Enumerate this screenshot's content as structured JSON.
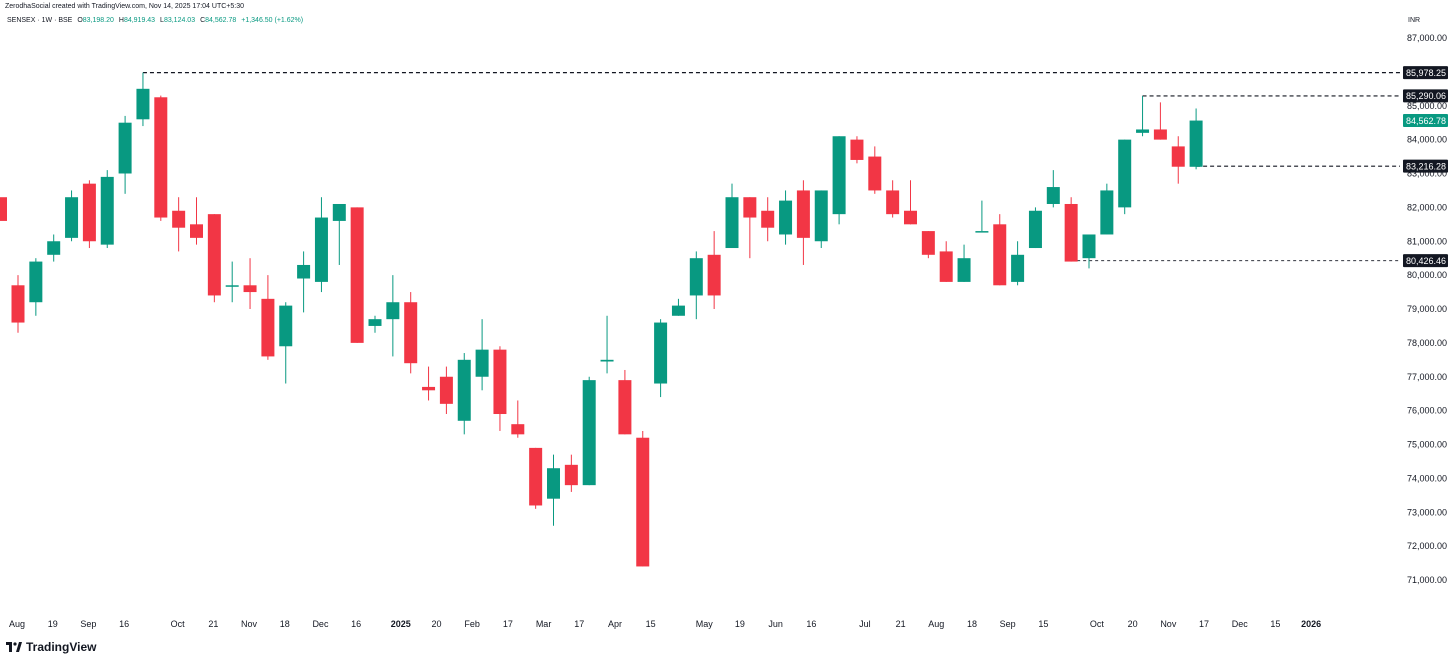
{
  "header": {
    "credit": "ZerodhaSocial created with TradingView.com, Nov 14, 2025 17:04 UTC+5:30",
    "symbol": "SENSEX · 1W · BSE",
    "open_label": "O",
    "open": "83,198.20",
    "high_label": "H",
    "high": "84,919.43",
    "low_label": "L",
    "low": "83,124.03",
    "close_label": "C",
    "close": "84,562.78",
    "change": "+1,346.50 (+1.62%)",
    "currency": "INR"
  },
  "colors": {
    "up": "#089981",
    "down": "#f23645",
    "ref_line": "#131722",
    "text": "#131722"
  },
  "footer": {
    "brand": "TradingView",
    "logo_icon": "tradingview-logo-icon"
  },
  "chart_data": {
    "type": "candlestick",
    "interval": "1W",
    "y_scale": "linear",
    "ylim": [
      70500,
      87500
    ],
    "y_ticks": [
      71000,
      72000,
      73000,
      74000,
      75000,
      76000,
      77000,
      78000,
      79000,
      80000,
      81000,
      82000,
      83000,
      84000,
      85000,
      86000,
      87000
    ],
    "y_tick_labels": [
      "71,000.00",
      "72,000.00",
      "73,000.00",
      "74,000.00",
      "75,000.00",
      "76,000.00",
      "77,000.00",
      "78,000.00",
      "79,000.00",
      "80,000.00",
      "81,000.00",
      "82,000.00",
      "83,000.00",
      "84,000.00",
      "85,000.00",
      "86,000.00",
      "87,000.00"
    ],
    "x_ticks": [
      {
        "i": 0,
        "label": "Aug"
      },
      {
        "i": 2,
        "label": "19"
      },
      {
        "i": 4,
        "label": "Sep"
      },
      {
        "i": 6,
        "label": "16"
      },
      {
        "i": 9,
        "label": "Oct"
      },
      {
        "i": 11,
        "label": "21"
      },
      {
        "i": 13,
        "label": "Nov"
      },
      {
        "i": 15,
        "label": "18"
      },
      {
        "i": 17,
        "label": "Dec"
      },
      {
        "i": 19,
        "label": "16"
      },
      {
        "i": 21.5,
        "label": "2025"
      },
      {
        "i": 23.5,
        "label": "20"
      },
      {
        "i": 25.5,
        "label": "Feb"
      },
      {
        "i": 27.5,
        "label": "17"
      },
      {
        "i": 29.5,
        "label": "Mar"
      },
      {
        "i": 31.5,
        "label": "17"
      },
      {
        "i": 33.5,
        "label": "Apr"
      },
      {
        "i": 35.5,
        "label": "15"
      },
      {
        "i": 38.5,
        "label": "May"
      },
      {
        "i": 40.5,
        "label": "19"
      },
      {
        "i": 42.5,
        "label": "Jun"
      },
      {
        "i": 44.5,
        "label": "16"
      },
      {
        "i": 47.5,
        "label": "Jul"
      },
      {
        "i": 49.5,
        "label": "21"
      },
      {
        "i": 51.5,
        "label": "Aug"
      },
      {
        "i": 53.5,
        "label": "18"
      },
      {
        "i": 55.5,
        "label": "Sep"
      },
      {
        "i": 57.5,
        "label": "15"
      },
      {
        "i": 60.5,
        "label": "Oct"
      },
      {
        "i": 62.5,
        "label": "20"
      },
      {
        "i": 64.5,
        "label": "Nov"
      },
      {
        "i": 66.5,
        "label": "17"
      },
      {
        "i": 68.5,
        "label": "Dec"
      },
      {
        "i": 70.5,
        "label": "15"
      },
      {
        "i": 72.5,
        "label": "2026"
      }
    ],
    "candles": [
      {
        "o": 79700,
        "h": 80000,
        "l": 78300,
        "c": 78600
      },
      {
        "o": 79200,
        "h": 80500,
        "l": 78800,
        "c": 80400
      },
      {
        "o": 80600,
        "h": 81200,
        "l": 80400,
        "c": 81000
      },
      {
        "o": 81100,
        "h": 82500,
        "l": 81000,
        "c": 82300
      },
      {
        "o": 82700,
        "h": 82800,
        "l": 80800,
        "c": 81000
      },
      {
        "o": 80900,
        "h": 83100,
        "l": 80800,
        "c": 82900
      },
      {
        "o": 83000,
        "h": 84700,
        "l": 82400,
        "c": 84500
      },
      {
        "o": 84600,
        "h": 85978,
        "l": 84400,
        "c": 85500
      },
      {
        "o": 85250,
        "h": 85300,
        "l": 81600,
        "c": 81700
      },
      {
        "o": 81900,
        "h": 82300,
        "l": 80700,
        "c": 81400
      },
      {
        "o": 81500,
        "h": 82300,
        "l": 80900,
        "c": 81100
      },
      {
        "o": 81800,
        "h": 81800,
        "l": 79200,
        "c": 79400
      },
      {
        "o": 79700,
        "h": 80400,
        "l": 79200,
        "c": 79700
      },
      {
        "o": 79700,
        "h": 80500,
        "l": 79000,
        "c": 79500
      },
      {
        "o": 79300,
        "h": 80000,
        "l": 77500,
        "c": 77600
      },
      {
        "o": 77900,
        "h": 79200,
        "l": 76800,
        "c": 79100
      },
      {
        "o": 79900,
        "h": 80700,
        "l": 78900,
        "c": 80300
      },
      {
        "o": 79800,
        "h": 82300,
        "l": 79500,
        "c": 81700
      },
      {
        "o": 81600,
        "h": 82100,
        "l": 80300,
        "c": 82100
      },
      {
        "o": 82000,
        "h": 82000,
        "l": 78000,
        "c": 78000
      },
      {
        "o": 78500,
        "h": 78800,
        "l": 78300,
        "c": 78700
      },
      {
        "o": 78700,
        "h": 80000,
        "l": 77600,
        "c": 79200
      },
      {
        "o": 79200,
        "h": 79500,
        "l": 77100,
        "c": 77400
      },
      {
        "o": 76700,
        "h": 77300,
        "l": 76300,
        "c": 76600
      },
      {
        "o": 77000,
        "h": 77300,
        "l": 75900,
        "c": 76200
      },
      {
        "o": 75700,
        "h": 77700,
        "l": 75300,
        "c": 77500
      },
      {
        "o": 77000,
        "h": 78700,
        "l": 76600,
        "c": 77800
      },
      {
        "o": 77800,
        "h": 77900,
        "l": 75400,
        "c": 75900
      },
      {
        "o": 75600,
        "h": 76300,
        "l": 75200,
        "c": 75300
      },
      {
        "o": 74900,
        "h": 74900,
        "l": 73100,
        "c": 73200
      },
      {
        "o": 73400,
        "h": 74700,
        "l": 72600,
        "c": 74300
      },
      {
        "o": 74400,
        "h": 74700,
        "l": 73600,
        "c": 73800
      },
      {
        "o": 73800,
        "h": 77000,
        "l": 73800,
        "c": 76900
      },
      {
        "o": 77450,
        "h": 78800,
        "l": 77100,
        "c": 77500
      },
      {
        "o": 76900,
        "h": 77200,
        "l": 75300,
        "c": 75300
      },
      {
        "o": 75200,
        "h": 75400,
        "l": 71400,
        "c": 71400
      },
      {
        "o": 76800,
        "h": 78700,
        "l": 76400,
        "c": 78600
      },
      {
        "o": 78800,
        "h": 79300,
        "l": 78800,
        "c": 79100
      },
      {
        "o": 79400,
        "h": 80700,
        "l": 78700,
        "c": 80500
      },
      {
        "o": 80600,
        "h": 81300,
        "l": 79000,
        "c": 79400
      },
      {
        "o": 80800,
        "h": 82700,
        "l": 80800,
        "c": 82300
      },
      {
        "o": 82300,
        "h": 82300,
        "l": 80500,
        "c": 81700
      },
      {
        "o": 81900,
        "h": 82300,
        "l": 81000,
        "c": 81400
      },
      {
        "o": 81200,
        "h": 82500,
        "l": 80900,
        "c": 82200
      },
      {
        "o": 82500,
        "h": 82800,
        "l": 80300,
        "c": 81100
      },
      {
        "o": 81000,
        "h": 82500,
        "l": 80800,
        "c": 82500
      },
      {
        "o": 81800,
        "h": 84100,
        "l": 81500,
        "c": 84100
      },
      {
        "o": 84000,
        "h": 84100,
        "l": 83300,
        "c": 83400
      },
      {
        "o": 83500,
        "h": 83800,
        "l": 82400,
        "c": 82500
      },
      {
        "o": 82500,
        "h": 82800,
        "l": 81700,
        "c": 81800
      },
      {
        "o": 81900,
        "h": 82800,
        "l": 81500,
        "c": 81500
      },
      {
        "o": 81300,
        "h": 81300,
        "l": 80500,
        "c": 80600
      },
      {
        "o": 80700,
        "h": 81000,
        "l": 79800,
        "c": 79800
      },
      {
        "o": 79800,
        "h": 80900,
        "l": 79800,
        "c": 80500
      },
      {
        "o": 81300,
        "h": 82200,
        "l": 81300,
        "c": 81300
      },
      {
        "o": 81500,
        "h": 81800,
        "l": 79700,
        "c": 79700
      },
      {
        "o": 79800,
        "h": 81000,
        "l": 79700,
        "c": 80600
      },
      {
        "o": 80800,
        "h": 82000,
        "l": 80800,
        "c": 81900
      },
      {
        "o": 82100,
        "h": 83100,
        "l": 82000,
        "c": 82600
      },
      {
        "o": 82100,
        "h": 82300,
        "l": 80400,
        "c": 80400
      },
      {
        "o": 80500,
        "h": 81100,
        "l": 80200,
        "c": 81200
      },
      {
        "o": 81200,
        "h": 82700,
        "l": 81200,
        "c": 82500
      },
      {
        "o": 82000,
        "h": 84000,
        "l": 81800,
        "c": 84000
      },
      {
        "o": 84200,
        "h": 85290,
        "l": 84100,
        "c": 84300
      },
      {
        "o": 84300,
        "h": 85100,
        "l": 84000,
        "c": 84000
      },
      {
        "o": 83800,
        "h": 84100,
        "l": 82700,
        "c": 83200
      },
      {
        "o": 83198.2,
        "h": 84919.43,
        "l": 83124.03,
        "c": 84562.78
      }
    ],
    "reference_lines": [
      {
        "value": 85978.25,
        "label": "85,978.25",
        "from": 7
      },
      {
        "value": 85290.06,
        "label": "85,290.06",
        "from": 63
      },
      {
        "value": 83216.28,
        "label": "83,216.28",
        "from": 66
      },
      {
        "value": 80426.46,
        "label": "80,426.46",
        "from": 59
      }
    ],
    "last_price": {
      "value": 84562.78,
      "label": "84,562.78"
    }
  }
}
